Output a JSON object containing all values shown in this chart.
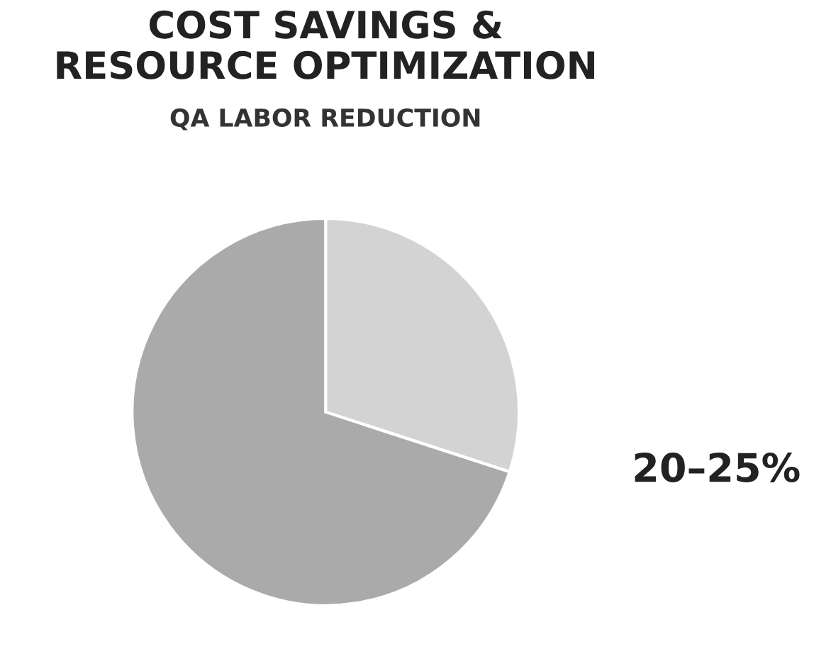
{
  "chart_data": {
    "type": "pie",
    "title": "COST SAVINGS &\nRESOURCE OPTIMIZATION",
    "subtitle": "QA LABOR REDUCTION",
    "categories": [
      null,
      null
    ],
    "values": [
      30,
      70
    ],
    "colors": [
      "#d3d3d3",
      "#aaaaaa"
    ],
    "annotations": [
      "20–25%"
    ],
    "legend": false
  }
}
